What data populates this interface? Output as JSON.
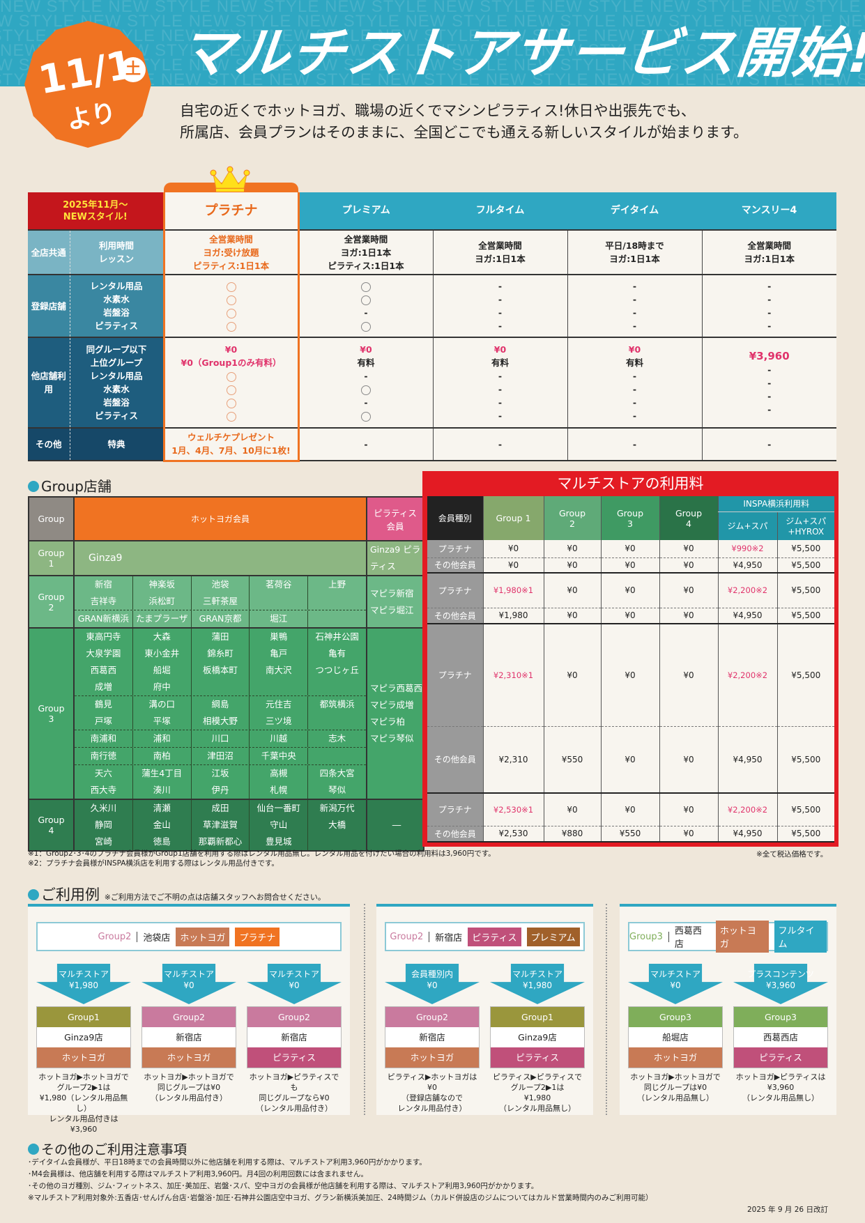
{
  "header": {
    "watermark": "NEW STYLE",
    "title": "マルチストアサービス開始!",
    "badge": {
      "date": "11/1",
      "weekday": "土",
      "suffix": "より"
    },
    "intro": [
      "自宅の近くでホットヨガ、職場の近くでマシンピラティス!休日や出張先でも、",
      "所属店、会員プランはそのままに、全国どこでも通える新しいスタイルが始まります。"
    ]
  },
  "plans_table": {
    "corner": [
      "2025年11月～",
      "NEWスタイル!"
    ],
    "plans": [
      "プラチナ",
      "プレミアム",
      "フルタイム",
      "デイタイム",
      "マンスリー4"
    ],
    "rows": [
      {
        "category": "全店共通",
        "items": [
          "利用時間",
          "レッスン"
        ],
        "color": "#7ab4c4",
        "values": [
          [
            "全営業時間",
            "ヨガ:受け放題",
            "ピラティス:1日1本"
          ],
          [
            "全営業時間",
            "ヨガ:1日1本",
            "ピラティス:1日1本"
          ],
          [
            "全営業時間",
            "ヨガ:1日1本"
          ],
          [
            "平日/18時まで",
            "ヨガ:1日1本"
          ],
          [
            "全営業時間",
            "ヨガ:1日1本"
          ]
        ]
      },
      {
        "category": "登録店舗",
        "items": [
          "レンタル用品",
          "水素水",
          "岩盤浴",
          "ピラティス"
        ],
        "color": "#3a87a1",
        "values": [
          [
            "○",
            "○",
            "○",
            "○"
          ],
          [
            "○",
            "○",
            "-",
            "○"
          ],
          [
            "-",
            "-",
            "-",
            "-"
          ],
          [
            "-",
            "-",
            "-",
            "-"
          ],
          [
            "-",
            "-",
            "-",
            "-"
          ]
        ]
      },
      {
        "category": "他店舗利用",
        "items": [
          "同グループ以下",
          "上位グループ",
          "レンタル用品",
          "水素水",
          "岩盤浴",
          "ピラティス"
        ],
        "color": "#1e5d7e",
        "values": [
          [
            "¥0",
            "¥0（Group1のみ有料）",
            "○",
            "○",
            "○",
            "○"
          ],
          [
            "¥0",
            "有料",
            "-",
            "○",
            "-",
            "○"
          ],
          [
            "¥0",
            "有料",
            "-",
            "-",
            "-",
            "-"
          ],
          [
            "¥0",
            "有料",
            "-",
            "-",
            "-",
            "-"
          ],
          [
            "¥3,960",
            "-",
            "-",
            "-",
            "-"
          ]
        ]
      },
      {
        "category": "その他",
        "items": [
          "特典"
        ],
        "color": "#164868",
        "values": [
          [
            "ウェルチケプレゼント",
            "1月、4月、7月、10月に1枚!"
          ],
          [
            "-"
          ],
          [
            "-"
          ],
          [
            "-"
          ],
          [
            "-"
          ]
        ]
      }
    ]
  },
  "group_section": {
    "heading": "Group店舗",
    "headers": {
      "group": "Group",
      "hot": "ホットヨガ会員",
      "pilates": "ピラティス会員"
    },
    "groups": [
      {
        "label": "Group 1",
        "color": "#8db682",
        "blocks": [
          [
            [
              "Ginza9"
            ]
          ]
        ],
        "pilates": [
          "Ginza9 ピラティス"
        ]
      },
      {
        "label": "Group 2",
        "color": "#6cb887",
        "blocks": [
          [
            [
              "新宿",
              "吉祥寺"
            ],
            [
              "神楽坂",
              "浜松町"
            ],
            [
              "池袋",
              "三軒茶屋"
            ],
            [
              "茗荷谷"
            ],
            [
              "上野"
            ]
          ],
          [
            [
              "GRAN新横浜"
            ],
            [
              "たまプラーザ"
            ],
            [
              "GRAN京都"
            ],
            [
              "堀江"
            ],
            []
          ]
        ],
        "pilates": [
          "マピラ新宿",
          "マピラ堀江"
        ]
      },
      {
        "label": "Group 3",
        "color": "#44a56a",
        "blocks": [
          [
            [
              "東高円寺",
              "大泉学園",
              "西葛西",
              "成増"
            ],
            [
              "大森",
              "東小金井",
              "船堀",
              "府中"
            ],
            [
              "蒲田",
              "錦糸町",
              "板橋本町"
            ],
            [
              "巣鴨",
              "亀戸",
              "南大沢"
            ],
            [
              "石神井公園",
              "亀有",
              "つつじヶ丘"
            ]
          ],
          [
            [
              "鶴見",
              "戸塚"
            ],
            [
              "溝の口",
              "平塚"
            ],
            [
              "綱島",
              "相模大野"
            ],
            [
              "元住吉",
              "三ツ境"
            ],
            [
              "都筑横浜"
            ]
          ],
          [
            [
              "南浦和"
            ],
            [
              "浦和"
            ],
            [
              "川口"
            ],
            [
              "川越"
            ],
            [
              "志木"
            ]
          ],
          [
            [
              "南行徳"
            ],
            [
              "南柏"
            ],
            [
              "津田沼"
            ],
            [
              "千葉中央"
            ],
            []
          ],
          [
            [
              "天六",
              "西大寺"
            ],
            [
              "蒲生4丁目",
              "湊川"
            ],
            [
              "江坂",
              "伊丹"
            ],
            [
              "高槻",
              "札幌"
            ],
            [
              "四条大宮",
              "琴似"
            ]
          ]
        ],
        "pilates": [
          "マピラ西葛西",
          "マピラ成増",
          "マピラ柏",
          "マピラ琴似"
        ]
      },
      {
        "label": "Group 4",
        "color": "#2f7d50",
        "blocks": [
          [
            [
              "久米川",
              "静岡",
              "宮崎"
            ],
            [
              "清瀬",
              "金山",
              "徳島"
            ],
            [
              "成田",
              "草津滋賀",
              "那覇新都心"
            ],
            [
              "仙台一番町",
              "守山",
              "豊見城"
            ],
            [
              "新潟万代",
              "大橋"
            ]
          ]
        ],
        "pilates": [
          "―"
        ]
      }
    ]
  },
  "fee_table": {
    "title": "マルチストアの利用料",
    "header": {
      "type": "会員種別",
      "groups": [
        "Group 1",
        "Group 2",
        "Group 3",
        "Group 4"
      ],
      "inspa": "INSPA横浜利用料",
      "inspa_cols": [
        "ジム+スパ",
        "ジム+スパ +HYROX"
      ]
    },
    "group_colors": [
      "#86a86c",
      "#5faa78",
      "#3f9a63",
      "#2a7348"
    ],
    "rows": [
      {
        "platinum_label": "プラチナ",
        "other_label": "その他会員",
        "platinum": [
          "¥0",
          "¥0",
          "¥0",
          "¥0",
          "¥990※2",
          "¥5,500"
        ],
        "other": [
          "¥0",
          "¥0",
          "¥0",
          "¥0",
          "¥4,950",
          "¥5,500"
        ]
      },
      {
        "platinum_label": "プラチナ",
        "other_label": "その他会員",
        "platinum": [
          "¥1,980※1",
          "¥0",
          "¥0",
          "¥0",
          "¥2,200※2",
          "¥5,500"
        ],
        "other": [
          "¥1,980",
          "¥0",
          "¥0",
          "¥0",
          "¥4,950",
          "¥5,500"
        ]
      },
      {
        "platinum_label": "プラチナ",
        "other_label": "その他会員",
        "platinum": [
          "¥2,310※1",
          "¥0",
          "¥0",
          "¥0",
          "¥2,200※2",
          "¥5,500"
        ],
        "other": [
          "¥2,310",
          "¥550",
          "¥0",
          "¥0",
          "¥4,950",
          "¥5,500"
        ]
      },
      {
        "platinum_label": "プラチナ",
        "other_label": "その他会員",
        "platinum": [
          "¥2,530※1",
          "¥0",
          "¥0",
          "¥0",
          "¥2,200※2",
          "¥5,500"
        ],
        "other": [
          "¥2,530",
          "¥880",
          "¥550",
          "¥0",
          "¥4,950",
          "¥5,500"
        ]
      }
    ]
  },
  "footnotes": {
    "n1": "※1：Group2･3･4のプラチナ会員様がGroup1店舗を利用する際はレンタル用品無し。レンタル用品を付けたい場合の利用料は3,960円です。",
    "n2": "※2：プラチナ会員様がINSPA横浜店を利用する際はレンタル用品付きです。",
    "tax": "※全て税込価格です。"
  },
  "examples": {
    "heading": "ご利用例",
    "note": "※ご利用方法でご不明の点は店舗スタッフへお問合せください。",
    "panels": [
      {
        "group": "Group2",
        "group_color": "#c97a9e",
        "store": "池袋店",
        "tags": [
          {
            "label": "ホットヨガ",
            "color": "#c87a55"
          },
          {
            "label": "プラチナ",
            "color": "#f07322"
          }
        ],
        "flows": [
          {
            "arrow": [
              "マルチストア",
              "¥1,980"
            ],
            "group": "Group1",
            "gcolor": "#9a963c",
            "store": "Ginza9店",
            "type": "ホットヨガ",
            "tcolor": "#c87a55",
            "caption": [
              "ホットヨガ▶ホットヨガで",
              "グループ2▶1は",
              "¥1,980（レンタル用品無し）",
              "レンタル用品付きは¥3,960"
            ]
          },
          {
            "arrow": [
              "マルチストア",
              "¥0"
            ],
            "group": "Group2",
            "gcolor": "#c97a9e",
            "store": "新宿店",
            "type": "ホットヨガ",
            "tcolor": "#c87a55",
            "caption": [
              "ホットヨガ▶ホットヨガで",
              "同じグループは¥0",
              "（レンタル用品付き）"
            ]
          },
          {
            "arrow": [
              "マルチストア",
              "¥0"
            ],
            "group": "Group2",
            "gcolor": "#c97a9e",
            "store": "新宿店",
            "type": "ピラティス",
            "tcolor": "#c0507a",
            "caption": [
              "ホットヨガ▶ピラティスでも",
              "同じグループなら¥0",
              "（レンタル用品付き）"
            ]
          }
        ]
      },
      {
        "group": "Group2",
        "group_color": "#c97a9e",
        "store": "新宿店",
        "tags": [
          {
            "label": "ピラティス",
            "color": "#c0507a"
          },
          {
            "label": "プレミアム",
            "color": "#a0602a"
          }
        ],
        "flows": [
          {
            "arrow": [
              "会員種別内",
              "¥0"
            ],
            "group": "Group2",
            "gcolor": "#c97a9e",
            "store": "新宿店",
            "type": "ホットヨガ",
            "tcolor": "#c87a55",
            "caption": [
              "ピラティス▶ホットヨガは",
              "¥0",
              "（登録店舗なので",
              "レンタル用品付き）"
            ]
          },
          {
            "arrow": [
              "マルチストア",
              "¥1,980"
            ],
            "group": "Group1",
            "gcolor": "#9a963c",
            "store": "Ginza9店",
            "type": "ピラティス",
            "tcolor": "#c0507a",
            "caption": [
              "ピラティス▶ピラティスで",
              "グループ2▶1は",
              "¥1,980",
              "（レンタル用品無し）"
            ]
          }
        ]
      },
      {
        "group": "Group3",
        "group_color": "#7fae5a",
        "store": "西葛西店",
        "tags": [
          {
            "label": "ホットヨガ",
            "color": "#c87a55"
          },
          {
            "label": "フルタイム",
            "color": "#2fa7c2"
          }
        ],
        "flows": [
          {
            "arrow": [
              "マルチストア",
              "¥0"
            ],
            "group": "Group3",
            "gcolor": "#7fae5a",
            "store": "船堀店",
            "type": "ホットヨガ",
            "tcolor": "#c87a55",
            "caption": [
              "ホットヨガ▶ホットヨガで",
              "同じグループは¥0",
              "（レンタル用品無し）"
            ]
          },
          {
            "arrow": [
              "プラスコンテンツ",
              "¥3,960"
            ],
            "group": "Group3",
            "gcolor": "#7fae5a",
            "store": "西葛西店",
            "type": "ピラティス",
            "tcolor": "#c0507a",
            "caption": [
              "ホットヨガ▶ピラティスは",
              "¥3,960",
              "（レンタル用品無し）"
            ]
          }
        ]
      }
    ]
  },
  "notes": {
    "heading": "その他のご利用注意事項",
    "items": [
      "･デイタイム会員様が、平日18時までの会員時間以外に他店舗を利用する際は、マルチストア利用3,960円がかかります。",
      "･M4会員様は、他店舗を利用する際はマルチストア利用3,960円。月4回の利用回数には含まれません。",
      "･その他のヨガ種別、ジム･フィットネス、加圧･美加圧、岩盤･スパ、空中ヨガの会員様が他店舗を利用する際は、マルチストア利用3,960円がかかります。",
      "※マルチストア利用対象外:五香店･せんげん台店･岩盤浴･加圧･石神井公園店空中ヨガ、グラン新横浜美加圧、24時間ジム（カルド併設店のジムについてはカルド営業時間内のみご利用可能）"
    ],
    "revised": "2025 年 9 月 26 日改訂"
  },
  "colors": {
    "teal": "#2fa7c2",
    "orange": "#f07322",
    "red": "#e31b23",
    "pink_price": "#e0336b"
  }
}
